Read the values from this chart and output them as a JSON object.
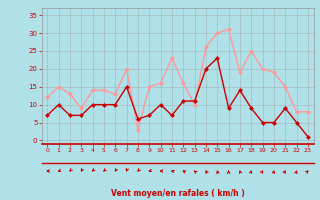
{
  "x": [
    0,
    1,
    2,
    3,
    4,
    5,
    6,
    7,
    8,
    9,
    10,
    11,
    12,
    13,
    14,
    15,
    16,
    17,
    18,
    19,
    20,
    21,
    22,
    23
  ],
  "wind_avg": [
    7,
    10,
    7,
    7,
    10,
    10,
    10,
    15,
    6,
    7,
    10,
    7,
    11,
    11,
    20,
    23,
    9,
    14,
    9,
    5,
    5,
    9,
    5,
    1
  ],
  "wind_gust": [
    12,
    15,
    13,
    9,
    14,
    14,
    13,
    20,
    3,
    15,
    16,
    23,
    16,
    10,
    26,
    30,
    31,
    19,
    25,
    20,
    19,
    15,
    8,
    8
  ],
  "avg_color": "#cc0000",
  "gust_color": "#ff9999",
  "bg_color": "#b0e0e8",
  "grid_color": "#999999",
  "xlabel": "Vent moyen/en rafales ( km/h )",
  "yticks": [
    0,
    5,
    10,
    15,
    20,
    25,
    30,
    35
  ],
  "xticks": [
    0,
    1,
    2,
    3,
    4,
    5,
    6,
    7,
    8,
    9,
    10,
    11,
    12,
    13,
    14,
    15,
    16,
    17,
    18,
    19,
    20,
    21,
    22,
    23
  ],
  "ylim": [
    -1,
    37
  ],
  "xlim": [
    -0.5,
    23.5
  ],
  "wind_dirs": [
    270,
    255,
    225,
    210,
    225,
    225,
    210,
    195,
    225,
    255,
    270,
    285,
    300,
    315,
    330,
    345,
    0,
    345,
    15,
    30,
    15,
    30,
    15,
    45
  ]
}
